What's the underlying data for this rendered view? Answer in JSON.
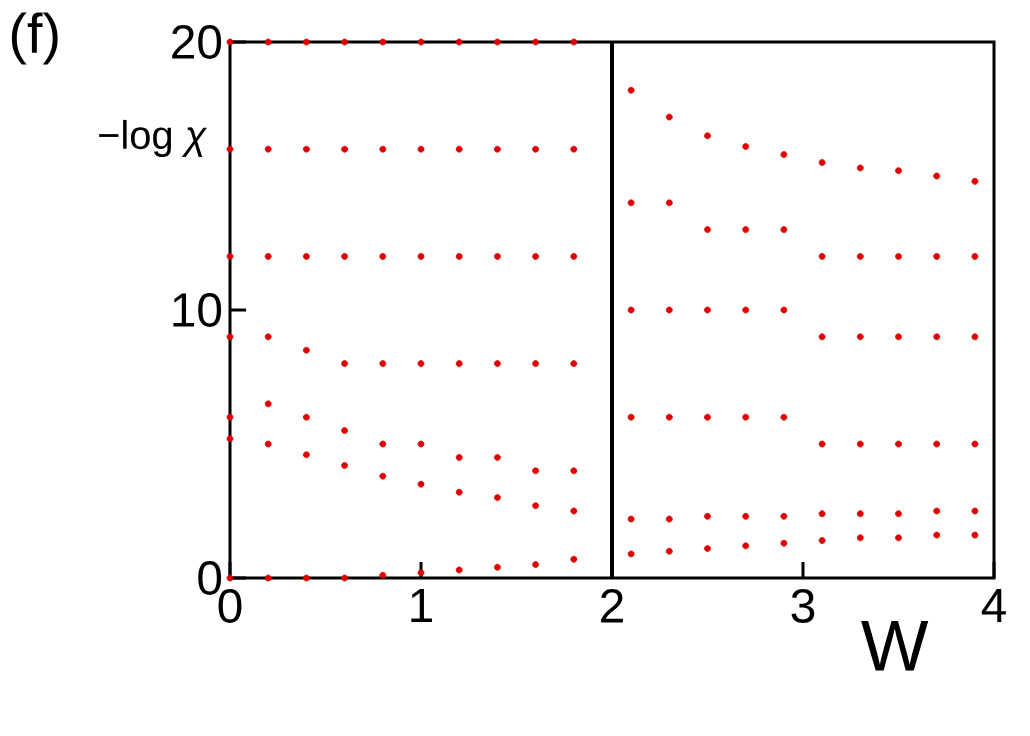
{
  "chart_data": {
    "type": "scatter",
    "xlabel": "W",
    "ylabel": "−log *χ*",
    "annotations": [
      "(f)"
    ],
    "xlim": [
      0,
      4
    ],
    "ylim": [
      0,
      20
    ],
    "xticks": [
      0,
      1,
      2,
      3,
      4
    ],
    "yticks": [
      0,
      10,
      20
    ],
    "marker": "circle",
    "ref_lines": [
      {
        "axis": "x",
        "value": 2,
        "color": "#000000"
      }
    ],
    "series": [
      {
        "color": "#e00000",
        "x": [
          0,
          0,
          0,
          0,
          0,
          0,
          0,
          0.2,
          0.2,
          0.2,
          0.2,
          0.2,
          0.2,
          0.2,
          0.4,
          0.4,
          0.4,
          0.4,
          0.4,
          0.4,
          0.4,
          0.6,
          0.6,
          0.6,
          0.6,
          0.6,
          0.6,
          0.6,
          0.8,
          0.8,
          0.8,
          0.8,
          0.8,
          0.8,
          0.8,
          1.0,
          1.0,
          1.0,
          1.0,
          1.0,
          1.0,
          1.0,
          1.2,
          1.2,
          1.2,
          1.2,
          1.2,
          1.2,
          1.2,
          1.4,
          1.4,
          1.4,
          1.4,
          1.4,
          1.4,
          1.4,
          1.6,
          1.6,
          1.6,
          1.6,
          1.6,
          1.6,
          1.6,
          1.8,
          1.8,
          1.8,
          1.8,
          1.8,
          1.8,
          1.8,
          2.1,
          2.1,
          2.1,
          2.1,
          2.1,
          2.1,
          2.3,
          2.3,
          2.3,
          2.3,
          2.3,
          2.3,
          2.5,
          2.5,
          2.5,
          2.5,
          2.5,
          2.5,
          2.7,
          2.7,
          2.7,
          2.7,
          2.7,
          2.7,
          2.9,
          2.9,
          2.9,
          2.9,
          2.9,
          2.9,
          3.1,
          3.1,
          3.1,
          3.1,
          3.1,
          3.1,
          3.3,
          3.3,
          3.3,
          3.3,
          3.3,
          3.3,
          3.5,
          3.5,
          3.5,
          3.5,
          3.5,
          3.5,
          3.7,
          3.7,
          3.7,
          3.7,
          3.7,
          3.7,
          3.9,
          3.9,
          3.9,
          3.9,
          3.9,
          3.9
        ],
        "values": [
          20,
          16,
          12,
          9,
          6,
          5.2,
          0,
          20,
          16,
          12,
          9,
          6.5,
          5.0,
          0,
          20,
          16,
          12,
          8.5,
          6,
          4.6,
          0,
          20,
          16,
          12,
          8,
          5.5,
          4.2,
          0,
          20,
          16,
          12,
          8,
          5,
          3.8,
          0.1,
          20,
          16,
          12,
          8,
          5,
          3.5,
          0.2,
          20,
          16,
          12,
          8,
          4.5,
          3.2,
          0.3,
          20,
          16,
          12,
          8,
          4.5,
          3,
          0.4,
          20,
          16,
          12,
          8,
          4,
          2.7,
          0.5,
          20,
          16,
          12,
          8,
          4,
          2.5,
          0.7,
          18.2,
          14,
          10,
          6,
          2.2,
          0.9,
          17.2,
          14,
          10,
          6,
          2.2,
          1.0,
          16.5,
          13,
          10,
          6,
          2.3,
          1.1,
          16.1,
          13,
          10,
          6,
          2.3,
          1.2,
          15.8,
          13,
          10,
          6,
          2.3,
          1.3,
          15.5,
          12,
          9,
          5,
          2.4,
          1.4,
          15.3,
          12,
          9,
          5,
          2.4,
          1.5,
          15.2,
          12,
          9,
          5,
          2.4,
          1.5,
          15.0,
          12,
          9,
          5,
          2.5,
          1.6,
          14.8,
          12,
          9,
          5,
          2.5,
          1.6
        ]
      }
    ]
  }
}
